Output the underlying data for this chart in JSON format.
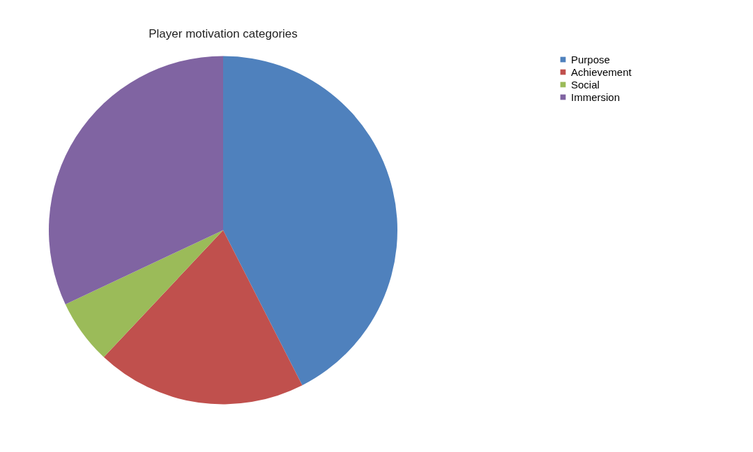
{
  "chart_data": {
    "type": "pie",
    "title": "Player motivation categories",
    "categories": [
      "Purpose",
      "Achievement",
      "Social",
      "Immersion"
    ],
    "values": [
      42.5,
      19.5,
      6,
      32
    ],
    "colors": [
      "#4f81bd",
      "#c0504d",
      "#9bbb59",
      "#8064a2"
    ],
    "legend": "right"
  }
}
